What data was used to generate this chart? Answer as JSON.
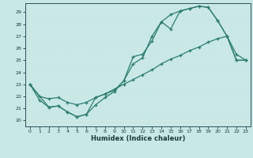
{
  "bg_color": "#c8e8e8",
  "grid_color": "#d0e8e0",
  "line_color": "#2e7d6e",
  "xlabel": "Humidex (Indice chaleur)",
  "xlim": [
    -0.5,
    23.5
  ],
  "ylim": [
    19.5,
    29.75
  ],
  "xticks": [
    0,
    1,
    2,
    3,
    4,
    5,
    6,
    7,
    8,
    9,
    10,
    11,
    12,
    13,
    14,
    15,
    16,
    17,
    18,
    19,
    20,
    21,
    22,
    23
  ],
  "yticks": [
    20,
    21,
    22,
    23,
    24,
    25,
    26,
    27,
    28,
    29
  ],
  "line1_x": [
    0,
    1,
    2,
    3,
    4,
    5,
    6,
    7,
    8,
    9,
    10,
    11,
    12,
    13,
    14,
    15,
    16,
    17,
    18,
    19,
    20,
    21,
    22,
    23
  ],
  "line1_y": [
    23,
    21.7,
    21.1,
    21.2,
    20.7,
    20.3,
    20.5,
    21.3,
    21.9,
    22.4,
    23.3,
    25.3,
    25.5,
    26.6,
    28.2,
    28.8,
    29.1,
    29.3,
    29.5,
    29.4,
    28.3,
    27.0,
    25.0,
    25.0
  ],
  "line2_x": [
    0,
    2,
    3,
    4,
    5,
    6,
    7,
    8,
    9,
    10,
    11,
    12,
    13,
    14,
    15,
    16,
    17,
    18,
    19,
    20,
    21,
    22,
    23
  ],
  "line2_y": [
    23,
    21.1,
    21.2,
    20.7,
    20.3,
    20.5,
    21.9,
    22.2,
    22.5,
    23.3,
    24.7,
    25.2,
    27.0,
    28.2,
    27.6,
    29.1,
    29.3,
    29.5,
    29.4,
    28.3,
    27.0,
    25.0,
    25.0
  ],
  "line3_x": [
    0,
    1,
    2,
    3,
    4,
    5,
    6,
    7,
    8,
    9,
    10,
    11,
    12,
    13,
    14,
    15,
    16,
    17,
    18,
    19,
    20,
    21,
    22,
    23
  ],
  "line3_y": [
    23.0,
    22.0,
    21.8,
    21.9,
    21.5,
    21.3,
    21.5,
    21.9,
    22.2,
    22.6,
    23.0,
    23.4,
    23.8,
    24.2,
    24.7,
    25.1,
    25.4,
    25.8,
    26.1,
    26.5,
    26.8,
    27.0,
    25.5,
    25.0
  ]
}
